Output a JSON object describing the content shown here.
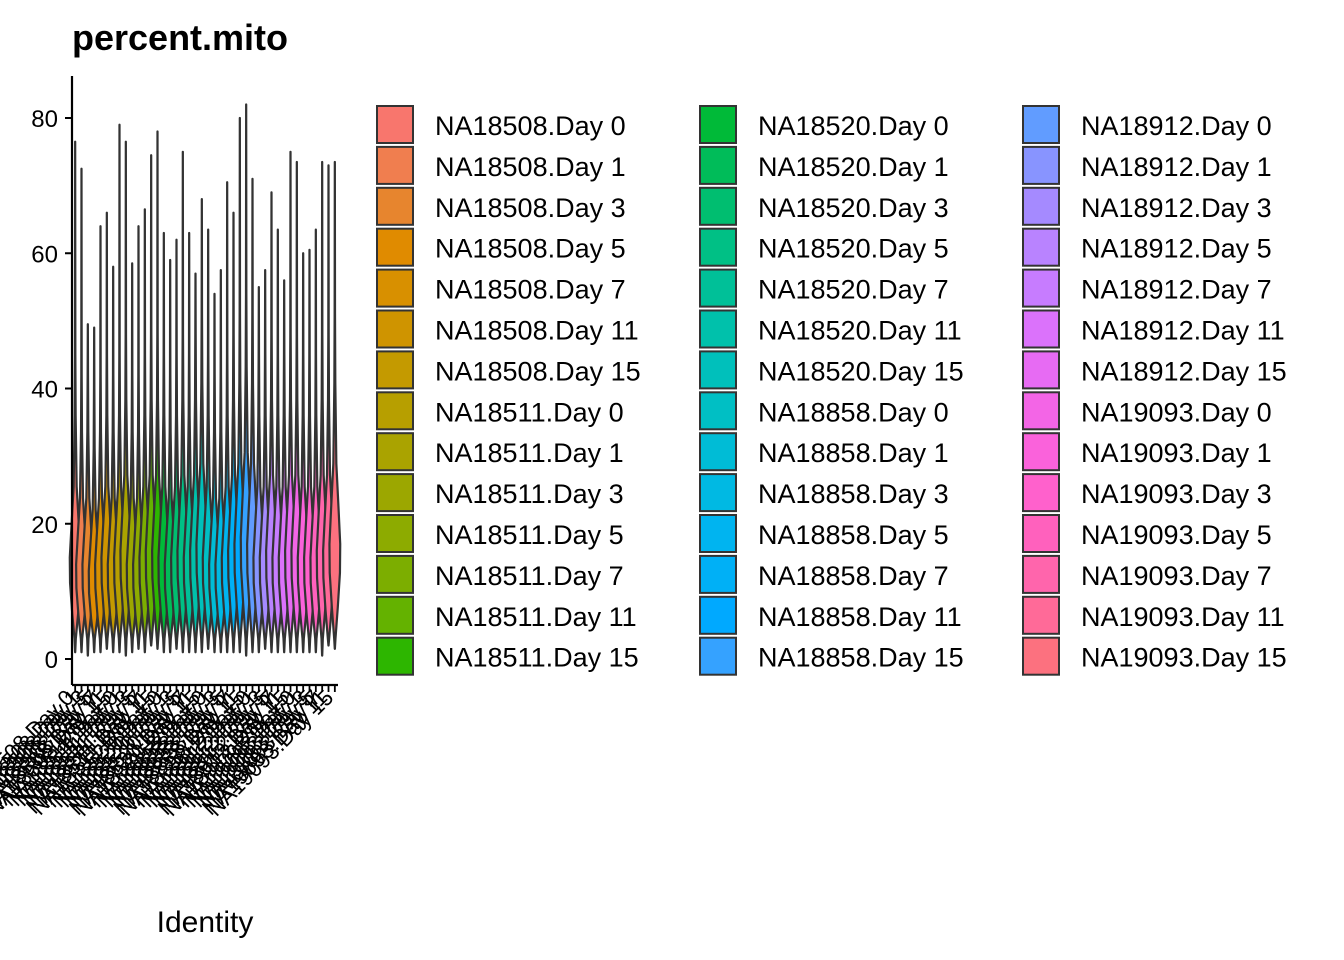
{
  "chart_data": {
    "type": "violin",
    "title": "percent.mito",
    "xlabel": "Identity",
    "ylabel": "",
    "ylim": [
      -3,
      86
    ],
    "yticks": [
      0,
      20,
      40,
      60,
      80
    ],
    "grid": false,
    "legend_position": "right",
    "legend_columns": 3,
    "categories": [
      "NA18508.Day 0",
      "NA18508.Day 1",
      "NA18508.Day 3",
      "NA18508.Day 5",
      "NA18508.Day 7",
      "NA18508.Day 11",
      "NA18508.Day 15",
      "NA18511.Day 0",
      "NA18511.Day 1",
      "NA18511.Day 3",
      "NA18511.Day 5",
      "NA18511.Day 7",
      "NA18511.Day 11",
      "NA18511.Day 15",
      "NA18520.Day 0",
      "NA18520.Day 1",
      "NA18520.Day 3",
      "NA18520.Day 5",
      "NA18520.Day 7",
      "NA18520.Day 11",
      "NA18520.Day 15",
      "NA18858.Day 0",
      "NA18858.Day 1",
      "NA18858.Day 3",
      "NA18858.Day 5",
      "NA18858.Day 7",
      "NA18858.Day 11",
      "NA18858.Day 15",
      "NA18912.Day 0",
      "NA18912.Day 1",
      "NA18912.Day 3",
      "NA18912.Day 5",
      "NA18912.Day 7",
      "NA18912.Day 11",
      "NA18912.Day 15",
      "NA19093.Day 0",
      "NA19093.Day 1",
      "NA19093.Day 3",
      "NA19093.Day 5",
      "NA19093.Day 7",
      "NA19093.Day 11",
      "NA19093.Day 15"
    ],
    "colors": [
      "#F8766D",
      "#F07E4F",
      "#E7852E",
      "#E08B00",
      "#D89000",
      "#CF9400",
      "#C49A00",
      "#B79F00",
      "#AAA300",
      "#9CA700",
      "#8DAB00",
      "#7CAE00",
      "#64B200",
      "#2DB600",
      "#00BA38",
      "#00BC59",
      "#00BE70",
      "#00C085",
      "#00C098",
      "#00C1AB",
      "#00C0BB",
      "#00BFC4",
      "#00BCD6",
      "#00B9E3",
      "#00B4F0",
      "#00B0F6",
      "#00A9FF",
      "#35A2FF",
      "#619CFF",
      "#8894FF",
      "#A58AFF",
      "#B983FF",
      "#C77CFF",
      "#DB72FB",
      "#E76BF3",
      "#F365E6",
      "#FA62DB",
      "#FF61CC",
      "#FF61BD",
      "#FF65AC",
      "#FF6A98",
      "#FC717F"
    ],
    "series": [
      {
        "values": {
          "min": 1.0,
          "max": 76.5,
          "median": 15
        }
      },
      {
        "values": {
          "min": 1.0,
          "max": 72.5,
          "median": 14
        }
      },
      {
        "values": {
          "min": 0.5,
          "max": 49.5,
          "median": 14
        }
      },
      {
        "values": {
          "min": 1.0,
          "max": 49.0,
          "median": 13
        }
      },
      {
        "values": {
          "min": 1.0,
          "max": 64.0,
          "median": 14
        }
      },
      {
        "values": {
          "min": 1.5,
          "max": 66.0,
          "median": 15
        }
      },
      {
        "values": {
          "min": 1.0,
          "max": 58.0,
          "median": 14
        }
      },
      {
        "values": {
          "min": 1.0,
          "max": 79.0,
          "median": 15
        }
      },
      {
        "values": {
          "min": 0.5,
          "max": 76.5,
          "median": 16
        }
      },
      {
        "values": {
          "min": 1.0,
          "max": 58.5,
          "median": 14
        }
      },
      {
        "values": {
          "min": 1.5,
          "max": 64.0,
          "median": 14
        }
      },
      {
        "values": {
          "min": 1.0,
          "max": 66.5,
          "median": 15
        }
      },
      {
        "values": {
          "min": 2.0,
          "max": 74.5,
          "median": 16
        }
      },
      {
        "values": {
          "min": 1.5,
          "max": 78.0,
          "median": 16
        }
      },
      {
        "values": {
          "min": 1.0,
          "max": 63.0,
          "median": 15
        }
      },
      {
        "values": {
          "min": 1.0,
          "max": 59.0,
          "median": 14
        }
      },
      {
        "values": {
          "min": 1.5,
          "max": 62.0,
          "median": 15
        }
      },
      {
        "values": {
          "min": 1.0,
          "max": 75.0,
          "median": 16
        }
      },
      {
        "values": {
          "min": 1.0,
          "max": 63.0,
          "median": 15
        }
      },
      {
        "values": {
          "min": 1.0,
          "max": 57.0,
          "median": 16
        }
      },
      {
        "values": {
          "min": 1.0,
          "max": 68.0,
          "median": 17
        }
      },
      {
        "values": {
          "min": 1.5,
          "max": 63.5,
          "median": 15
        }
      },
      {
        "values": {
          "min": 1.0,
          "max": 54.0,
          "median": 14
        }
      },
      {
        "values": {
          "min": 1.0,
          "max": 57.5,
          "median": 14
        }
      },
      {
        "values": {
          "min": 1.0,
          "max": 70.5,
          "median": 15
        }
      },
      {
        "values": {
          "min": 1.0,
          "max": 66.0,
          "median": 16
        }
      },
      {
        "values": {
          "min": 1.0,
          "max": 80.0,
          "median": 17
        }
      },
      {
        "values": {
          "min": 0.5,
          "max": 82.0,
          "median": 18
        }
      },
      {
        "values": {
          "min": 1.0,
          "max": 71.0,
          "median": 17
        }
      },
      {
        "values": {
          "min": 1.0,
          "max": 55.0,
          "median": 15
        }
      },
      {
        "values": {
          "min": 1.5,
          "max": 57.5,
          "median": 15
        }
      },
      {
        "values": {
          "min": 1.0,
          "max": 69.0,
          "median": 16
        }
      },
      {
        "values": {
          "min": 1.0,
          "max": 63.5,
          "median": 15
        }
      },
      {
        "values": {
          "min": 1.0,
          "max": 56.0,
          "median": 15
        }
      },
      {
        "values": {
          "min": 1.0,
          "max": 75.0,
          "median": 16
        }
      },
      {
        "values": {
          "min": 1.0,
          "max": 73.5,
          "median": 16
        }
      },
      {
        "values": {
          "min": 1.0,
          "max": 60.0,
          "median": 15
        }
      },
      {
        "values": {
          "min": 1.0,
          "max": 60.5,
          "median": 15
        }
      },
      {
        "values": {
          "min": 1.0,
          "max": 63.5,
          "median": 15
        }
      },
      {
        "values": {
          "min": 0.5,
          "max": 73.5,
          "median": 16
        }
      },
      {
        "values": {
          "min": 2.0,
          "max": 73.0,
          "median": 16
        }
      },
      {
        "values": {
          "min": 1.5,
          "max": 73.5,
          "median": 17
        }
      }
    ]
  }
}
